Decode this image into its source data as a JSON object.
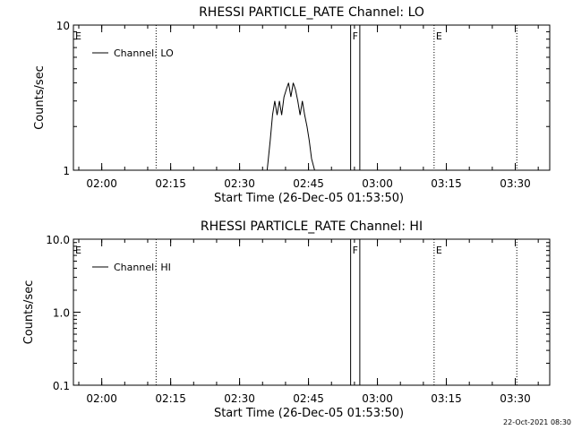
{
  "chart_data": [
    {
      "type": "line",
      "title": "RHESSI PARTICLE_RATE Channel: LO",
      "xlabel": "Start Time (26-Dec-05 01:53:50)",
      "ylabel": "Counts/sec",
      "yscale": "log",
      "ylim": [
        1,
        10
      ],
      "xlim": [
        "01:53:50",
        "03:37:30"
      ],
      "x_ticks": [
        "02:00",
        "02:15",
        "02:30",
        "02:45",
        "03:00",
        "03:15",
        "03:30"
      ],
      "y_ticks": [
        "1",
        "10"
      ],
      "legend": {
        "label": "Channel: LO",
        "placement": "top-left"
      },
      "markers": [
        {
          "label": "E",
          "time": "01:53:50",
          "style": "dotted"
        },
        {
          "label": "",
          "time": "02:11:50",
          "style": "dotted"
        },
        {
          "label": "F",
          "time": "02:54:10",
          "style": "solid"
        },
        {
          "label": "",
          "time": "02:56:10",
          "style": "solid"
        },
        {
          "label": "E",
          "time": "03:12:20",
          "style": "dotted"
        },
        {
          "label": "",
          "time": "03:30:20",
          "style": "dotted"
        }
      ],
      "series": [
        {
          "name": "Channel: LO",
          "x": [
            "02:36:00",
            "02:36:40",
            "02:37:10",
            "02:37:40",
            "02:38:10",
            "02:38:40",
            "02:39:10",
            "02:39:40",
            "02:40:10",
            "02:40:40",
            "02:41:10",
            "02:41:40",
            "02:42:10",
            "02:42:40",
            "02:43:10",
            "02:43:40",
            "02:44:10",
            "02:44:40",
            "02:45:10",
            "02:45:40",
            "02:46:20"
          ],
          "y": [
            1,
            1.6,
            2.4,
            3,
            2.4,
            3,
            2.4,
            3.2,
            3.6,
            4,
            3.2,
            4,
            3.6,
            3,
            2.4,
            3,
            2.4,
            2,
            1.6,
            1.2,
            1
          ]
        }
      ]
    },
    {
      "type": "line",
      "title": "RHESSI PARTICLE_RATE Channel: HI",
      "xlabel": "Start Time (26-Dec-05 01:53:50)",
      "ylabel": "Counts/sec",
      "yscale": "log",
      "ylim": [
        0.1,
        10
      ],
      "xlim": [
        "01:53:50",
        "03:37:30"
      ],
      "x_ticks": [
        "02:00",
        "02:15",
        "02:30",
        "02:45",
        "03:00",
        "03:15",
        "03:30"
      ],
      "y_ticks": [
        "0.1",
        "1.0",
        "10.0"
      ],
      "legend": {
        "label": "Channel: HI",
        "placement": "top-left"
      },
      "markers": [
        {
          "label": "E",
          "time": "01:53:50",
          "style": "dotted"
        },
        {
          "label": "",
          "time": "02:11:50",
          "style": "dotted"
        },
        {
          "label": "F",
          "time": "02:54:10",
          "style": "solid"
        },
        {
          "label": "",
          "time": "02:56:10",
          "style": "solid"
        },
        {
          "label": "E",
          "time": "03:12:20",
          "style": "dotted"
        },
        {
          "label": "",
          "time": "03:30:20",
          "style": "dotted"
        }
      ],
      "series": [
        {
          "name": "Channel: HI",
          "x": [],
          "y": []
        }
      ]
    }
  ],
  "footer": {
    "timestamp": "22-Oct-2021 08:30"
  }
}
